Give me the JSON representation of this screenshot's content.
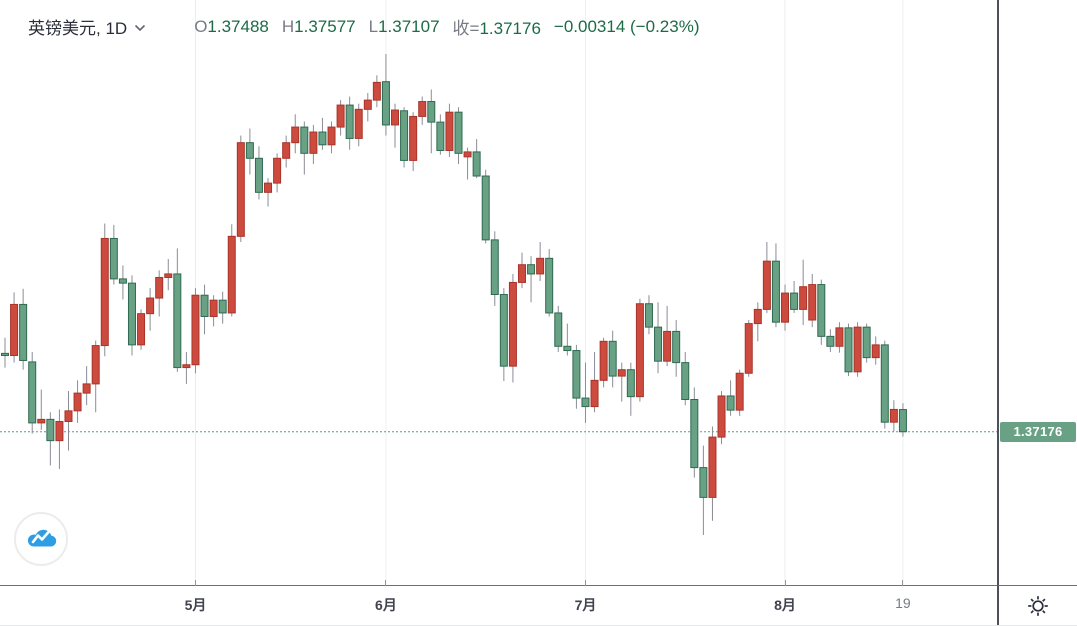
{
  "header": {
    "title": "英镑美元, 1D",
    "quote": {
      "open_label": "O",
      "open": "1.37488",
      "high_label": "H",
      "high": "1.37577",
      "low_label": "L",
      "low": "1.37107",
      "close_label": "收=",
      "close": "1.37176",
      "change": "−0.00314 (−0.23%)"
    }
  },
  "price_axis": {
    "current_price_label": "1.37176"
  },
  "colors": {
    "up_fill": "#cd4b3e",
    "up_border": "#a8342a",
    "down_fill": "#68a183",
    "down_border": "#2f6a52",
    "wick": "#8a8d96",
    "grid": "#eaeef4",
    "price_line": "#5f9e80",
    "price_badge_bg": "#68a183",
    "value_green": "#1d6b46",
    "label_gray": "#787b86",
    "title_dark": "#2a2e39",
    "axis_label": "#40434e",
    "logo_blue": "#2f9de3",
    "icon_dark": "#2a2e39"
  },
  "chart_data": {
    "type": "candlestick",
    "title": "英镑美元 (GBP/USD) 日线图",
    "interval": "1D",
    "color_convention": "red = up day, green = down day (CN style)",
    "visible_price_range": [
      1.3572,
      1.425
    ],
    "price_line_value": 1.37176,
    "price_line_label": "1.37176",
    "x_ticks": [
      {
        "label": "5月",
        "index": 21,
        "major": true
      },
      {
        "label": "6月",
        "index": 42,
        "major": true
      },
      {
        "label": "7月",
        "index": 64,
        "major": true
      },
      {
        "label": "8月",
        "index": 86,
        "major": true
      },
      {
        "label": "19",
        "index": 99,
        "major": false
      }
    ],
    "candles": [
      {
        "d": "4-02",
        "o": 1.3828,
        "h": 1.385,
        "l": 1.3808,
        "c": 1.3825
      },
      {
        "d": "4-05",
        "o": 1.3825,
        "h": 1.3914,
        "l": 1.3815,
        "c": 1.3897
      },
      {
        "d": "4-06",
        "o": 1.3897,
        "h": 1.3919,
        "l": 1.3805,
        "c": 1.3818
      },
      {
        "d": "4-07",
        "o": 1.3816,
        "h": 1.383,
        "l": 1.3715,
        "c": 1.373
      },
      {
        "d": "4-08",
        "o": 1.373,
        "h": 1.3777,
        "l": 1.372,
        "c": 1.3735
      },
      {
        "d": "4-09",
        "o": 1.3735,
        "h": 1.3745,
        "l": 1.367,
        "c": 1.3705
      },
      {
        "d": "4-12",
        "o": 1.3705,
        "h": 1.3749,
        "l": 1.3665,
        "c": 1.3732
      },
      {
        "d": "4-13",
        "o": 1.3732,
        "h": 1.3775,
        "l": 1.3691,
        "c": 1.3747
      },
      {
        "d": "4-14",
        "o": 1.3747,
        "h": 1.379,
        "l": 1.373,
        "c": 1.3772
      },
      {
        "d": "4-15",
        "o": 1.3772,
        "h": 1.381,
        "l": 1.3755,
        "c": 1.3785
      },
      {
        "d": "4-16",
        "o": 1.3785,
        "h": 1.3846,
        "l": 1.3745,
        "c": 1.3839
      },
      {
        "d": "4-19",
        "o": 1.3839,
        "h": 1.4011,
        "l": 1.3824,
        "c": 1.399
      },
      {
        "d": "4-20",
        "o": 1.399,
        "h": 1.4009,
        "l": 1.3925,
        "c": 1.3933
      },
      {
        "d": "4-21",
        "o": 1.3933,
        "h": 1.3952,
        "l": 1.3904,
        "c": 1.3927
      },
      {
        "d": "4-22",
        "o": 1.3927,
        "h": 1.3938,
        "l": 1.3825,
        "c": 1.384
      },
      {
        "d": "4-23",
        "o": 1.384,
        "h": 1.389,
        "l": 1.3833,
        "c": 1.3884
      },
      {
        "d": "4-26",
        "o": 1.3884,
        "h": 1.392,
        "l": 1.386,
        "c": 1.3906
      },
      {
        "d": "4-27",
        "o": 1.3906,
        "h": 1.3945,
        "l": 1.388,
        "c": 1.3935
      },
      {
        "d": "4-28",
        "o": 1.3935,
        "h": 1.3961,
        "l": 1.3917,
        "c": 1.394
      },
      {
        "d": "4-29",
        "o": 1.394,
        "h": 1.3976,
        "l": 1.3802,
        "c": 1.3808
      },
      {
        "d": "4-30",
        "o": 1.3808,
        "h": 1.383,
        "l": 1.3785,
        "c": 1.3812
      },
      {
        "d": "5-03",
        "o": 1.3812,
        "h": 1.392,
        "l": 1.38,
        "c": 1.391
      },
      {
        "d": "5-04",
        "o": 1.391,
        "h": 1.3925,
        "l": 1.3855,
        "c": 1.388
      },
      {
        "d": "5-05",
        "o": 1.388,
        "h": 1.391,
        "l": 1.3866,
        "c": 1.3903
      },
      {
        "d": "5-06",
        "o": 1.3903,
        "h": 1.3915,
        "l": 1.387,
        "c": 1.3885
      },
      {
        "d": "5-07",
        "o": 1.3885,
        "h": 1.401,
        "l": 1.388,
        "c": 1.3993
      },
      {
        "d": "5-10",
        "o": 1.3993,
        "h": 1.4135,
        "l": 1.3985,
        "c": 1.4125
      },
      {
        "d": "5-11",
        "o": 1.4125,
        "h": 1.4145,
        "l": 1.408,
        "c": 1.4103
      },
      {
        "d": "5-12",
        "o": 1.4103,
        "h": 1.412,
        "l": 1.4045,
        "c": 1.4055
      },
      {
        "d": "5-13",
        "o": 1.4055,
        "h": 1.4075,
        "l": 1.4035,
        "c": 1.4068
      },
      {
        "d": "5-14",
        "o": 1.4068,
        "h": 1.411,
        "l": 1.4055,
        "c": 1.4103
      },
      {
        "d": "5-17",
        "o": 1.4103,
        "h": 1.4135,
        "l": 1.409,
        "c": 1.4125
      },
      {
        "d": "5-18",
        "o": 1.4125,
        "h": 1.4165,
        "l": 1.411,
        "c": 1.4147
      },
      {
        "d": "5-19",
        "o": 1.4147,
        "h": 1.4155,
        "l": 1.408,
        "c": 1.411
      },
      {
        "d": "5-20",
        "o": 1.411,
        "h": 1.415,
        "l": 1.4095,
        "c": 1.414
      },
      {
        "d": "5-21",
        "o": 1.414,
        "h": 1.416,
        "l": 1.4115,
        "c": 1.4122
      },
      {
        "d": "5-24",
        "o": 1.4122,
        "h": 1.4155,
        "l": 1.411,
        "c": 1.4147
      },
      {
        "d": "5-25",
        "o": 1.4147,
        "h": 1.4185,
        "l": 1.4135,
        "c": 1.4178
      },
      {
        "d": "5-26",
        "o": 1.4178,
        "h": 1.419,
        "l": 1.4115,
        "c": 1.4131
      },
      {
        "d": "5-27",
        "o": 1.4131,
        "h": 1.418,
        "l": 1.412,
        "c": 1.4172
      },
      {
        "d": "5-28",
        "o": 1.4172,
        "h": 1.4195,
        "l": 1.4155,
        "c": 1.4185
      },
      {
        "d": "5-31",
        "o": 1.4185,
        "h": 1.422,
        "l": 1.4175,
        "c": 1.421
      },
      {
        "d": "6-01",
        "o": 1.4211,
        "h": 1.425,
        "l": 1.4135,
        "c": 1.415
      },
      {
        "d": "6-02",
        "o": 1.415,
        "h": 1.418,
        "l": 1.4118,
        "c": 1.4171
      },
      {
        "d": "6-03",
        "o": 1.417,
        "h": 1.4175,
        "l": 1.409,
        "c": 1.41
      },
      {
        "d": "6-04",
        "o": 1.41,
        "h": 1.4168,
        "l": 1.4085,
        "c": 1.4162
      },
      {
        "d": "6-07",
        "o": 1.4162,
        "h": 1.419,
        "l": 1.415,
        "c": 1.4183
      },
      {
        "d": "6-08",
        "o": 1.4183,
        "h": 1.42,
        "l": 1.411,
        "c": 1.4154
      },
      {
        "d": "6-09",
        "o": 1.4154,
        "h": 1.4165,
        "l": 1.4108,
        "c": 1.4114
      },
      {
        "d": "6-10",
        "o": 1.4114,
        "h": 1.418,
        "l": 1.4105,
        "c": 1.4168
      },
      {
        "d": "6-11",
        "o": 1.4168,
        "h": 1.4175,
        "l": 1.4095,
        "c": 1.411
      },
      {
        "d": "6-14",
        "o": 1.4105,
        "h": 1.4118,
        "l": 1.4073,
        "c": 1.4112
      },
      {
        "d": "6-15",
        "o": 1.4112,
        "h": 1.413,
        "l": 1.4075,
        "c": 1.4078
      },
      {
        "d": "6-16",
        "o": 1.4078,
        "h": 1.4087,
        "l": 1.3983,
        "c": 1.3988
      },
      {
        "d": "6-17",
        "o": 1.3988,
        "h": 1.4,
        "l": 1.3895,
        "c": 1.3911
      },
      {
        "d": "6-18",
        "o": 1.3911,
        "h": 1.392,
        "l": 1.3789,
        "c": 1.381
      },
      {
        "d": "6-21",
        "o": 1.381,
        "h": 1.394,
        "l": 1.3787,
        "c": 1.3928
      },
      {
        "d": "6-22",
        "o": 1.3928,
        "h": 1.397,
        "l": 1.392,
        "c": 1.3953
      },
      {
        "d": "6-23",
        "o": 1.3953,
        "h": 1.3965,
        "l": 1.39,
        "c": 1.394
      },
      {
        "d": "6-24",
        "o": 1.394,
        "h": 1.3985,
        "l": 1.393,
        "c": 1.3962
      },
      {
        "d": "6-25",
        "o": 1.3962,
        "h": 1.3975,
        "l": 1.388,
        "c": 1.3885
      },
      {
        "d": "6-28",
        "o": 1.3885,
        "h": 1.3895,
        "l": 1.383,
        "c": 1.3838
      },
      {
        "d": "6-29",
        "o": 1.3838,
        "h": 1.387,
        "l": 1.3825,
        "c": 1.3832
      },
      {
        "d": "6-30",
        "o": 1.3832,
        "h": 1.384,
        "l": 1.375,
        "c": 1.3765
      },
      {
        "d": "7-01",
        "o": 1.3765,
        "h": 1.3815,
        "l": 1.373,
        "c": 1.3753
      },
      {
        "d": "7-02",
        "o": 1.3753,
        "h": 1.383,
        "l": 1.3745,
        "c": 1.379
      },
      {
        "d": "7-05",
        "o": 1.379,
        "h": 1.385,
        "l": 1.378,
        "c": 1.3845
      },
      {
        "d": "7-06",
        "o": 1.3845,
        "h": 1.386,
        "l": 1.378,
        "c": 1.3796
      },
      {
        "d": "7-07",
        "o": 1.3796,
        "h": 1.3815,
        "l": 1.376,
        "c": 1.3805
      },
      {
        "d": "7-08",
        "o": 1.3805,
        "h": 1.3815,
        "l": 1.374,
        "c": 1.3767
      },
      {
        "d": "7-09",
        "o": 1.3767,
        "h": 1.3905,
        "l": 1.376,
        "c": 1.3898
      },
      {
        "d": "7-12",
        "o": 1.3898,
        "h": 1.391,
        "l": 1.3855,
        "c": 1.3865
      },
      {
        "d": "7-13",
        "o": 1.3865,
        "h": 1.39,
        "l": 1.38,
        "c": 1.3817
      },
      {
        "d": "7-14",
        "o": 1.3817,
        "h": 1.3895,
        "l": 1.381,
        "c": 1.3859
      },
      {
        "d": "7-15",
        "o": 1.3859,
        "h": 1.3875,
        "l": 1.3795,
        "c": 1.3815
      },
      {
        "d": "7-16",
        "o": 1.3815,
        "h": 1.383,
        "l": 1.3755,
        "c": 1.3763
      },
      {
        "d": "7-19",
        "o": 1.3763,
        "h": 1.378,
        "l": 1.3653,
        "c": 1.3667
      },
      {
        "d": "7-20",
        "o": 1.3667,
        "h": 1.3698,
        "l": 1.3572,
        "c": 1.3625
      },
      {
        "d": "7-21",
        "o": 1.3625,
        "h": 1.3725,
        "l": 1.3592,
        "c": 1.371
      },
      {
        "d": "7-22",
        "o": 1.371,
        "h": 1.3775,
        "l": 1.37,
        "c": 1.3768
      },
      {
        "d": "7-23",
        "o": 1.3768,
        "h": 1.379,
        "l": 1.374,
        "c": 1.3748
      },
      {
        "d": "7-26",
        "o": 1.3748,
        "h": 1.3805,
        "l": 1.374,
        "c": 1.38
      },
      {
        "d": "7-27",
        "o": 1.38,
        "h": 1.3875,
        "l": 1.3795,
        "c": 1.387
      },
      {
        "d": "7-28",
        "o": 1.387,
        "h": 1.39,
        "l": 1.3845,
        "c": 1.389
      },
      {
        "d": "7-29",
        "o": 1.389,
        "h": 1.3985,
        "l": 1.3885,
        "c": 1.3958
      },
      {
        "d": "7-30",
        "o": 1.3958,
        "h": 1.3983,
        "l": 1.3865,
        "c": 1.3872
      },
      {
        "d": "8-02",
        "o": 1.3872,
        "h": 1.3925,
        "l": 1.386,
        "c": 1.3913
      },
      {
        "d": "8-03",
        "o": 1.3913,
        "h": 1.393,
        "l": 1.3885,
        "c": 1.389
      },
      {
        "d": "8-04",
        "o": 1.389,
        "h": 1.396,
        "l": 1.3868,
        "c": 1.3922
      },
      {
        "d": "8-05",
        "o": 1.3875,
        "h": 1.394,
        "l": 1.3865,
        "c": 1.3925
      },
      {
        "d": "8-06",
        "o": 1.3925,
        "h": 1.3932,
        "l": 1.384,
        "c": 1.3852
      },
      {
        "d": "8-09",
        "o": 1.3852,
        "h": 1.3862,
        "l": 1.383,
        "c": 1.3838
      },
      {
        "d": "8-10",
        "o": 1.3838,
        "h": 1.3872,
        "l": 1.3829,
        "c": 1.3864
      },
      {
        "d": "8-11",
        "o": 1.3864,
        "h": 1.387,
        "l": 1.3796,
        "c": 1.3802
      },
      {
        "d": "8-12",
        "o": 1.3802,
        "h": 1.3872,
        "l": 1.3795,
        "c": 1.3865
      },
      {
        "d": "8-13",
        "o": 1.3865,
        "h": 1.387,
        "l": 1.3815,
        "c": 1.3822
      },
      {
        "d": "8-16",
        "o": 1.3822,
        "h": 1.3852,
        "l": 1.3812,
        "c": 1.384
      },
      {
        "d": "8-17",
        "o": 1.384,
        "h": 1.3846,
        "l": 1.3722,
        "c": 1.3731
      },
      {
        "d": "8-18",
        "o": 1.3731,
        "h": 1.3762,
        "l": 1.3718,
        "c": 1.3749
      },
      {
        "d": "8-19",
        "o": 1.37488,
        "h": 1.37577,
        "l": 1.37107,
        "c": 1.37176
      }
    ]
  }
}
